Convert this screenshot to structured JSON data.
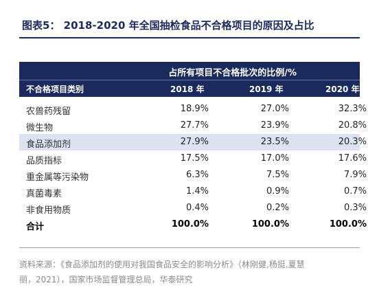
{
  "title": "图表5： 2018-2020 年全国抽检食品不合格项目的原因及占比",
  "table": {
    "span_header": "占所有项目不合格批次的比例/%",
    "columns": [
      "不合格项目类别",
      "2018 年",
      "2019 年",
      "2020 年"
    ],
    "rows": [
      {
        "category": "农兽药残留",
        "values": [
          "18.9%",
          "27.0%",
          "32.3%"
        ]
      },
      {
        "category": "微生物",
        "values": [
          "27.7%",
          "23.9%",
          "20.8%"
        ]
      },
      {
        "category": "食品添加剂",
        "values": [
          "27.9%",
          "23.5%",
          "20.3%"
        ]
      },
      {
        "category": "品质指标",
        "values": [
          "17.5%",
          "17.0%",
          "17.6%"
        ]
      },
      {
        "category": "重金属等污染物",
        "values": [
          "6.3%",
          "7.5%",
          "7.9%"
        ]
      },
      {
        "category": "真菌毒素",
        "values": [
          "1.4%",
          "0.9%",
          "0.7%"
        ]
      },
      {
        "category": "非食用物质",
        "values": [
          "0.4%",
          "0.2%",
          "0.3%"
        ]
      },
      {
        "category": "合计",
        "values": [
          "100.0%",
          "100.0%",
          "100.0%"
        ]
      }
    ]
  },
  "source_line1": "资料来源：《食品添加剂的使用对我国食品安全的影响分析》（林刚健,杨挺,夏慧",
  "source_line2": "丽，2021），国家市场监督管理总局，华泰研究"
}
